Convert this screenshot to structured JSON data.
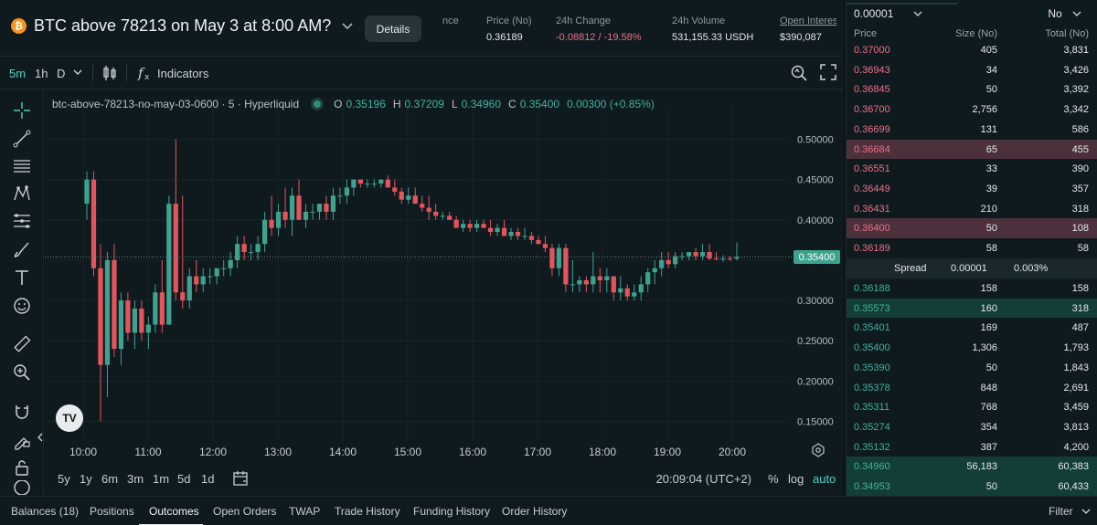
{
  "header": {
    "title": "BTC above 78213 on May 3 at 8:00 AM?",
    "btc_glyph": "₿",
    "details_label": "Details",
    "stats": [
      {
        "label": "nce",
        "value": ""
      },
      {
        "label": "Price (No)",
        "value": "0.36189"
      },
      {
        "label": "24h Change",
        "value": "-0.08812 / -19.58%"
      },
      {
        "label": "24h Volume",
        "value": "531,155.33 USDH"
      },
      {
        "label": "Open Interes",
        "value": "$390,087"
      }
    ],
    "accent_negative": "#ed7088"
  },
  "chart_toolbar": {
    "intervals": [
      "5m",
      "1h",
      "D"
    ],
    "active_interval": "5m",
    "indicators_label": "Indicators"
  },
  "draw_tools": [
    "crosshair-icon",
    "trend-line-icon",
    "horizontal-lines-icon",
    "pattern-icon",
    "fib-icon",
    "brush-icon",
    "text-icon",
    "emoji-icon",
    "ruler-icon",
    "zoom-icon",
    "magnet-icon",
    "lock-draw-icon",
    "lock-icon",
    "eye-icon"
  ],
  "legend": {
    "symbol": "btc-above-78213-no-may-03-0600 · 5 · Hyperliquid",
    "o_label": "O",
    "o": "0.35196",
    "h_label": "H",
    "h": "0.37209",
    "l_label": "L",
    "l": "0.34960",
    "c_label": "C",
    "c": "0.35400",
    "change": "0.00300 (+0.85%)"
  },
  "chart_data": {
    "type": "candlestick",
    "y_ticks": [
      "0.50000",
      "0.45000",
      "0.40000",
      "0.35000",
      "0.30000",
      "0.25000",
      "0.20000",
      "0.15000"
    ],
    "ylim": [
      0.12,
      0.53
    ],
    "x_ticks": [
      "10:00",
      "11:00",
      "12:00",
      "13:00",
      "14:00",
      "15:00",
      "16:00",
      "17:00",
      "18:00",
      "19:00",
      "20:00"
    ],
    "current_price": "0.35400",
    "up_color": "#3da38f",
    "down_color": "#e5545c",
    "candles": [
      [
        0.42,
        0.46,
        0.4,
        0.45
      ],
      [
        0.45,
        0.46,
        0.33,
        0.34
      ],
      [
        0.34,
        0.37,
        0.15,
        0.22
      ],
      [
        0.22,
        0.36,
        0.18,
        0.35
      ],
      [
        0.35,
        0.37,
        0.23,
        0.24
      ],
      [
        0.24,
        0.31,
        0.22,
        0.3
      ],
      [
        0.3,
        0.31,
        0.25,
        0.26
      ],
      [
        0.26,
        0.3,
        0.24,
        0.29
      ],
      [
        0.29,
        0.3,
        0.25,
        0.26
      ],
      [
        0.26,
        0.28,
        0.24,
        0.27
      ],
      [
        0.27,
        0.32,
        0.26,
        0.31
      ],
      [
        0.31,
        0.35,
        0.26,
        0.27
      ],
      [
        0.27,
        0.43,
        0.27,
        0.42
      ],
      [
        0.42,
        0.5,
        0.3,
        0.31
      ],
      [
        0.31,
        0.43,
        0.29,
        0.3
      ],
      [
        0.3,
        0.34,
        0.29,
        0.33
      ],
      [
        0.33,
        0.35,
        0.31,
        0.32
      ],
      [
        0.32,
        0.34,
        0.31,
        0.33
      ],
      [
        0.33,
        0.34,
        0.32,
        0.33
      ],
      [
        0.33,
        0.34,
        0.32,
        0.34
      ],
      [
        0.34,
        0.35,
        0.33,
        0.34
      ],
      [
        0.34,
        0.36,
        0.33,
        0.35
      ],
      [
        0.35,
        0.38,
        0.34,
        0.37
      ],
      [
        0.37,
        0.38,
        0.35,
        0.36
      ],
      [
        0.36,
        0.37,
        0.35,
        0.36
      ],
      [
        0.36,
        0.38,
        0.35,
        0.37
      ],
      [
        0.37,
        0.41,
        0.36,
        0.4
      ],
      [
        0.4,
        0.43,
        0.38,
        0.39
      ],
      [
        0.39,
        0.42,
        0.38,
        0.41
      ],
      [
        0.41,
        0.44,
        0.39,
        0.4
      ],
      [
        0.4,
        0.44,
        0.38,
        0.43
      ],
      [
        0.43,
        0.45,
        0.4,
        0.4
      ],
      [
        0.4,
        0.42,
        0.39,
        0.41
      ],
      [
        0.41,
        0.42,
        0.4,
        0.41
      ],
      [
        0.41,
        0.42,
        0.4,
        0.42
      ],
      [
        0.42,
        0.43,
        0.4,
        0.41
      ],
      [
        0.41,
        0.44,
        0.4,
        0.43
      ],
      [
        0.43,
        0.44,
        0.42,
        0.43
      ],
      [
        0.43,
        0.45,
        0.42,
        0.44
      ],
      [
        0.44,
        0.45,
        0.43,
        0.45
      ],
      [
        0.45,
        0.45,
        0.44,
        0.445
      ],
      [
        0.445,
        0.45,
        0.44,
        0.445
      ],
      [
        0.445,
        0.45,
        0.44,
        0.445
      ],
      [
        0.445,
        0.45,
        0.44,
        0.45
      ],
      [
        0.45,
        0.455,
        0.44,
        0.44
      ],
      [
        0.44,
        0.45,
        0.43,
        0.435
      ],
      [
        0.435,
        0.44,
        0.42,
        0.425
      ],
      [
        0.425,
        0.44,
        0.42,
        0.43
      ],
      [
        0.43,
        0.44,
        0.42,
        0.42
      ],
      [
        0.42,
        0.43,
        0.41,
        0.415
      ],
      [
        0.415,
        0.43,
        0.4,
        0.41
      ],
      [
        0.41,
        0.42,
        0.4,
        0.405
      ],
      [
        0.405,
        0.41,
        0.4,
        0.405
      ],
      [
        0.405,
        0.41,
        0.4,
        0.4
      ],
      [
        0.4,
        0.405,
        0.39,
        0.39
      ],
      [
        0.39,
        0.4,
        0.385,
        0.395
      ],
      [
        0.395,
        0.4,
        0.385,
        0.39
      ],
      [
        0.39,
        0.4,
        0.385,
        0.395
      ],
      [
        0.395,
        0.4,
        0.39,
        0.39
      ],
      [
        0.39,
        0.4,
        0.38,
        0.385
      ],
      [
        0.385,
        0.395,
        0.38,
        0.39
      ],
      [
        0.39,
        0.4,
        0.38,
        0.38
      ],
      [
        0.38,
        0.39,
        0.375,
        0.385
      ],
      [
        0.385,
        0.39,
        0.375,
        0.38
      ],
      [
        0.38,
        0.39,
        0.375,
        0.38
      ],
      [
        0.38,
        0.385,
        0.37,
        0.375
      ],
      [
        0.375,
        0.38,
        0.37,
        0.37
      ],
      [
        0.37,
        0.38,
        0.36,
        0.365
      ],
      [
        0.365,
        0.37,
        0.33,
        0.34
      ],
      [
        0.34,
        0.37,
        0.33,
        0.365
      ],
      [
        0.365,
        0.37,
        0.31,
        0.32
      ],
      [
        0.32,
        0.35,
        0.31,
        0.32
      ],
      [
        0.32,
        0.33,
        0.31,
        0.325
      ],
      [
        0.325,
        0.33,
        0.31,
        0.32
      ],
      [
        0.32,
        0.36,
        0.31,
        0.33
      ],
      [
        0.33,
        0.34,
        0.31,
        0.325
      ],
      [
        0.325,
        0.34,
        0.31,
        0.33
      ],
      [
        0.33,
        0.33,
        0.3,
        0.31
      ],
      [
        0.31,
        0.33,
        0.3,
        0.315
      ],
      [
        0.315,
        0.32,
        0.3,
        0.305
      ],
      [
        0.305,
        0.32,
        0.3,
        0.31
      ],
      [
        0.31,
        0.33,
        0.3,
        0.32
      ],
      [
        0.32,
        0.34,
        0.31,
        0.335
      ],
      [
        0.335,
        0.35,
        0.32,
        0.34
      ],
      [
        0.34,
        0.36,
        0.33,
        0.35
      ],
      [
        0.35,
        0.36,
        0.34,
        0.345
      ],
      [
        0.345,
        0.36,
        0.34,
        0.355
      ],
      [
        0.355,
        0.36,
        0.35,
        0.355
      ],
      [
        0.355,
        0.36,
        0.35,
        0.36
      ],
      [
        0.36,
        0.365,
        0.35,
        0.355
      ],
      [
        0.355,
        0.37,
        0.35,
        0.36
      ],
      [
        0.36,
        0.37,
        0.35,
        0.352
      ],
      [
        0.352,
        0.36,
        0.35,
        0.351
      ],
      [
        0.351,
        0.356,
        0.348,
        0.352
      ],
      [
        0.352,
        0.355,
        0.349,
        0.351
      ],
      [
        0.35196,
        0.37209,
        0.3496,
        0.354
      ]
    ]
  },
  "range_bar": {
    "ranges": [
      "5y",
      "1y",
      "6m",
      "3m",
      "1m",
      "5d",
      "1d"
    ],
    "time": "20:09:04 (UTC+2)",
    "percent_label": "%",
    "log_label": "log",
    "auto_label": "auto"
  },
  "orderbook": {
    "tick_size": "0.00001",
    "side": "No",
    "headers": {
      "price": "Price",
      "size": "Size (No)",
      "total": "Total (No)"
    },
    "asks": [
      {
        "price": "0.37000",
        "size": "405",
        "total": "3,831",
        "depth": 0.0
      },
      {
        "price": "0.36943",
        "size": "34",
        "total": "3,426",
        "depth": 0.0
      },
      {
        "price": "0.36845",
        "size": "50",
        "total": "3,392",
        "depth": 0.0
      },
      {
        "price": "0.36700",
        "size": "2,756",
        "total": "3,342",
        "depth": 0.0
      },
      {
        "price": "0.36699",
        "size": "131",
        "total": "586",
        "depth": 0.0
      },
      {
        "price": "0.36684",
        "size": "65",
        "total": "455",
        "depth": 1.0
      },
      {
        "price": "0.36551",
        "size": "33",
        "total": "390",
        "depth": 0.0
      },
      {
        "price": "0.36449",
        "size": "39",
        "total": "357",
        "depth": 0.0
      },
      {
        "price": "0.36431",
        "size": "210",
        "total": "318",
        "depth": 0.0
      },
      {
        "price": "0.36400",
        "size": "50",
        "total": "108",
        "depth": 1.0
      },
      {
        "price": "0.36189",
        "size": "58",
        "total": "58",
        "depth": 0.0
      }
    ],
    "spread": {
      "label": "Spread",
      "value": "0.00001",
      "percent": "0.003%"
    },
    "bids": [
      {
        "price": "0.36188",
        "size": "158",
        "total": "158",
        "depth": 0.0
      },
      {
        "price": "0.35573",
        "size": "160",
        "total": "318",
        "depth": 1.0
      },
      {
        "price": "0.35401",
        "size": "169",
        "total": "487",
        "depth": 0.0
      },
      {
        "price": "0.35400",
        "size": "1,306",
        "total": "1,793",
        "depth": 0.0
      },
      {
        "price": "0.35390",
        "size": "50",
        "total": "1,843",
        "depth": 0.0
      },
      {
        "price": "0.35378",
        "size": "848",
        "total": "2,691",
        "depth": 0.0
      },
      {
        "price": "0.35311",
        "size": "768",
        "total": "3,459",
        "depth": 0.0
      },
      {
        "price": "0.35274",
        "size": "354",
        "total": "3,813",
        "depth": 0.0
      },
      {
        "price": "0.35132",
        "size": "387",
        "total": "4,200",
        "depth": 0.0
      },
      {
        "price": "0.34960",
        "size": "56,183",
        "total": "60,383",
        "depth": 1.0
      },
      {
        "price": "0.34953",
        "size": "50",
        "total": "60,433",
        "depth": 1.0
      }
    ]
  },
  "bottom_tabs": {
    "tabs": [
      "Balances (18)",
      "Positions",
      "Outcomes",
      "Open Orders",
      "TWAP",
      "Trade History",
      "Funding History",
      "Order History"
    ],
    "active": "Outcomes",
    "filter_label": "Filter"
  }
}
